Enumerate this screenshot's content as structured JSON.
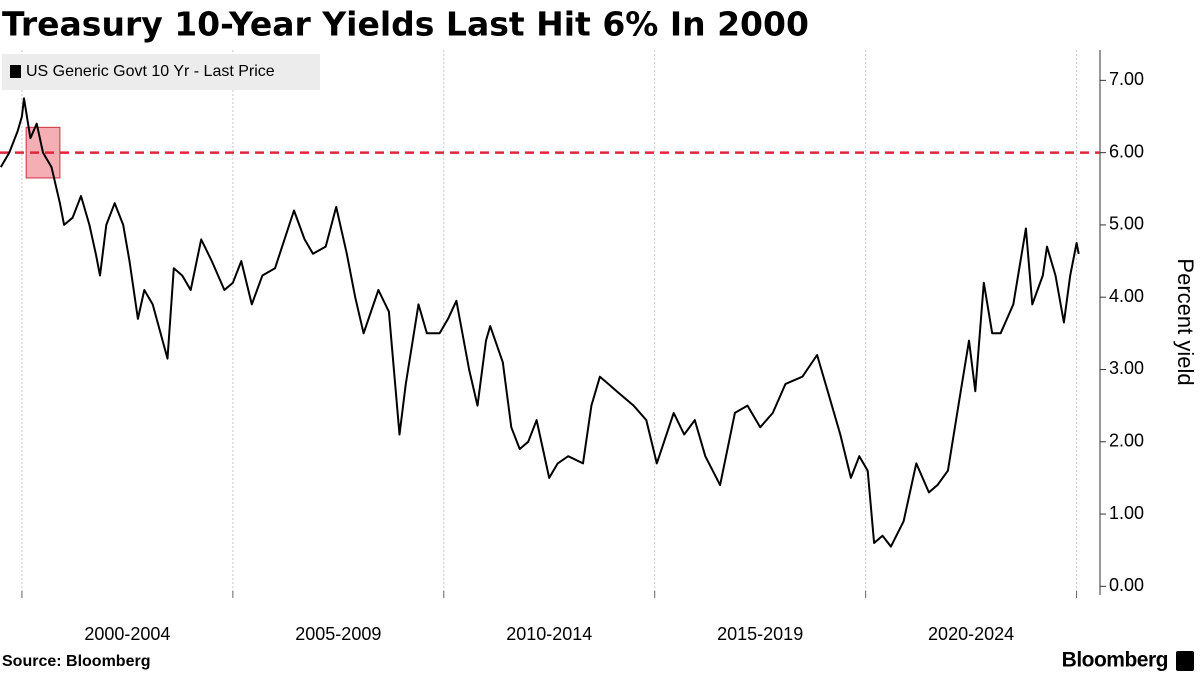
{
  "chart_data": {
    "type": "line",
    "title": "Treasury 10-Year Yields Last Hit 6% In 2000",
    "y_axis_label": "Percent yield",
    "source": "Source: Bloomberg",
    "brand": "Bloomberg",
    "x": [
      1999.5,
      1999.7,
      1999.9,
      2000.0,
      2000.05,
      2000.2,
      2000.35,
      2000.5,
      2000.7,
      2000.9,
      2001.0,
      2001.2,
      2001.4,
      2001.6,
      2001.75,
      2001.85,
      2002.0,
      2002.2,
      2002.4,
      2002.55,
      2002.75,
      2002.9,
      2003.1,
      2003.45,
      2003.6,
      2003.8,
      2004.0,
      2004.25,
      2004.5,
      2004.8,
      2005.0,
      2005.2,
      2005.45,
      2005.7,
      2006.0,
      2006.45,
      2006.7,
      2006.9,
      2007.2,
      2007.45,
      2007.7,
      2007.9,
      2008.1,
      2008.45,
      2008.7,
      2008.95,
      2009.1,
      2009.4,
      2009.6,
      2009.9,
      2010.1,
      2010.3,
      2010.6,
      2010.8,
      2011.0,
      2011.1,
      2011.4,
      2011.6,
      2011.8,
      2012.0,
      2012.2,
      2012.5,
      2012.7,
      2012.95,
      2013.3,
      2013.5,
      2013.7,
      2013.9,
      2014.1,
      2014.5,
      2014.8,
      2015.05,
      2015.45,
      2015.7,
      2015.95,
      2016.2,
      2016.55,
      2016.9,
      2017.2,
      2017.5,
      2017.8,
      2018.1,
      2018.5,
      2018.85,
      2019.1,
      2019.4,
      2019.65,
      2019.85,
      2020.05,
      2020.2,
      2020.4,
      2020.6,
      2020.9,
      2021.2,
      2021.5,
      2021.7,
      2021.95,
      2022.2,
      2022.45,
      2022.6,
      2022.8,
      2023.0,
      2023.2,
      2023.5,
      2023.8,
      2023.95,
      2024.2,
      2024.3,
      2024.5,
      2024.7,
      2024.85,
      2025.0,
      2025.05
    ],
    "series": [
      {
        "name": "US Generic Govt 10 Yr - Last Price",
        "color": "#000000",
        "values": [
          5.8,
          6.0,
          6.3,
          6.5,
          6.75,
          6.2,
          6.4,
          6.0,
          5.8,
          5.3,
          5.0,
          5.1,
          5.4,
          5.0,
          4.6,
          4.3,
          5.0,
          5.3,
          5.0,
          4.5,
          3.7,
          4.1,
          3.9,
          3.15,
          4.4,
          4.3,
          4.1,
          4.8,
          4.5,
          4.1,
          4.2,
          4.5,
          3.9,
          4.3,
          4.4,
          5.2,
          4.8,
          4.6,
          4.7,
          5.25,
          4.6,
          4.0,
          3.5,
          4.1,
          3.8,
          2.1,
          2.8,
          3.9,
          3.5,
          3.5,
          3.7,
          3.95,
          3.0,
          2.5,
          3.4,
          3.6,
          3.1,
          2.2,
          1.9,
          2.0,
          2.3,
          1.5,
          1.7,
          1.8,
          1.7,
          2.5,
          2.9,
          2.8,
          2.7,
          2.5,
          2.3,
          1.7,
          2.4,
          2.1,
          2.3,
          1.8,
          1.4,
          2.4,
          2.5,
          2.2,
          2.4,
          2.8,
          2.9,
          3.2,
          2.7,
          2.1,
          1.5,
          1.8,
          1.6,
          0.6,
          0.7,
          0.55,
          0.9,
          1.7,
          1.3,
          1.4,
          1.6,
          2.5,
          3.4,
          2.7,
          4.2,
          3.5,
          3.5,
          3.9,
          4.95,
          3.9,
          4.3,
          4.7,
          4.3,
          3.65,
          4.3,
          4.75,
          4.6
        ]
      }
    ],
    "xlim": [
      1999.48,
      2025.2
    ],
    "xticks": [
      2000,
      2005,
      2010,
      2015,
      2020,
      2025
    ],
    "xtick_labels": [
      {
        "value": 2002.5,
        "label": "2000-2004"
      },
      {
        "value": 2007.5,
        "label": "2005-2009"
      },
      {
        "value": 2012.5,
        "label": "2010-2014"
      },
      {
        "value": 2017.5,
        "label": "2015-2019"
      },
      {
        "value": 2022.5,
        "label": "2020-2024"
      }
    ],
    "ylim": [
      -0.12,
      7.42
    ],
    "yticks": [
      {
        "value": 0,
        "label": "0.00"
      },
      {
        "value": 1,
        "label": "1.00"
      },
      {
        "value": 2,
        "label": "2.00"
      },
      {
        "value": 3,
        "label": "3.00"
      },
      {
        "value": 4,
        "label": "4.00"
      },
      {
        "value": 5,
        "label": "5.00"
      },
      {
        "value": 6,
        "label": "6.00"
      },
      {
        "value": 7,
        "label": "7.00"
      }
    ],
    "grid": "x",
    "reference_line": {
      "value": 6,
      "color": "#e0283c"
    },
    "highlight": {
      "xlim": [
        2000.1,
        2000.9
      ],
      "ylim": [
        5.65,
        6.35
      ],
      "color": "#f4a0a8"
    },
    "legend": "top-left"
  }
}
